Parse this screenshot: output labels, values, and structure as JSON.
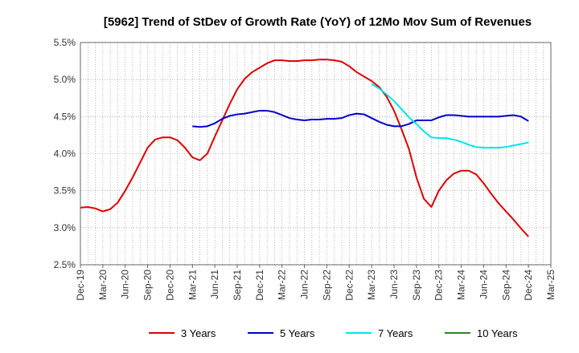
{
  "chart_data": {
    "type": "line",
    "title": "[5962]  Trend of StDev of Growth Rate (YoY) of 12Mo Mov Sum of Revenues",
    "xlabel": "",
    "ylabel": "",
    "ylim": [
      2.5,
      5.5
    ],
    "y_ticks": [
      "5.5%",
      "5.0%",
      "4.5%",
      "4.0%",
      "3.5%",
      "3.0%",
      "2.5%"
    ],
    "y_tick_values": [
      5.5,
      5.0,
      4.5,
      4.0,
      3.5,
      3.0,
      2.5
    ],
    "x_ticks": [
      "Dec-19",
      "Mar-20",
      "Jun-20",
      "Sep-20",
      "Dec-20",
      "Mar-21",
      "Jun-21",
      "Sep-21",
      "Dec-21",
      "Mar-22",
      "Jun-22",
      "Sep-22",
      "Dec-22",
      "Mar-23",
      "Jun-23",
      "Sep-23",
      "Dec-23",
      "Mar-24",
      "Jun-24",
      "Sep-24",
      "Dec-24",
      "Mar-25"
    ],
    "grid": true,
    "legend_position": "bottom",
    "series": [
      {
        "name": "3 Years",
        "color": "#dd0000",
        "start_index": 0,
        "values": [
          3.27,
          3.28,
          3.26,
          3.22,
          3.25,
          3.34,
          3.5,
          3.68,
          3.88,
          4.08,
          4.19,
          4.22,
          4.22,
          4.18,
          4.08,
          3.95,
          3.91,
          4.0,
          4.23,
          4.45,
          4.67,
          4.87,
          5.01,
          5.1,
          5.16,
          5.22,
          5.26,
          5.26,
          5.25,
          5.25,
          5.26,
          5.26,
          5.27,
          5.27,
          5.26,
          5.24,
          5.18,
          5.1,
          5.04,
          4.98,
          4.9,
          4.77,
          4.58,
          4.33,
          4.06,
          3.68,
          3.39,
          3.28,
          3.5,
          3.64,
          3.73,
          3.77,
          3.77,
          3.72,
          3.6,
          3.46,
          3.33,
          3.22,
          3.11,
          2.99,
          2.88
        ]
      },
      {
        "name": "5 Years",
        "color": "#0000cc",
        "start_index": 15,
        "values": [
          4.37,
          4.36,
          4.37,
          4.41,
          4.47,
          4.51,
          4.53,
          4.54,
          4.56,
          4.58,
          4.58,
          4.56,
          4.52,
          4.48,
          4.46,
          4.45,
          4.46,
          4.46,
          4.47,
          4.47,
          4.48,
          4.52,
          4.54,
          4.53,
          4.48,
          4.43,
          4.39,
          4.37,
          4.37,
          4.4,
          4.45,
          4.45,
          4.45,
          4.49,
          4.52,
          4.52,
          4.51,
          4.5,
          4.5,
          4.5,
          4.5,
          4.5,
          4.51,
          4.52,
          4.5,
          4.44
        ]
      },
      {
        "name": "7 Years",
        "color": "#00e5ee",
        "start_index": 39,
        "values": [
          4.94,
          4.88,
          4.8,
          4.71,
          4.6,
          4.49,
          4.4,
          4.3,
          4.22,
          4.21,
          4.21,
          4.19,
          4.16,
          4.12,
          4.09,
          4.08,
          4.08,
          4.08,
          4.09,
          4.11,
          4.13,
          4.15
        ]
      },
      {
        "name": "10 Years",
        "color": "#228b22",
        "start_index": 0,
        "values": []
      }
    ]
  }
}
